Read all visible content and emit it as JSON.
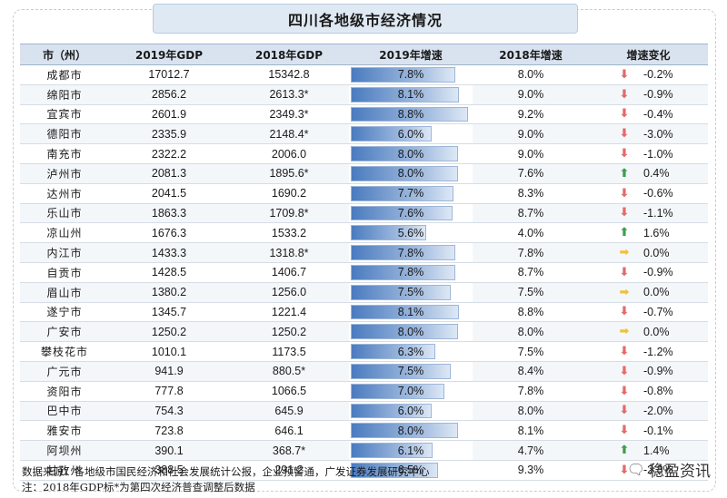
{
  "title": "四川各地级市经济情况",
  "headers": {
    "city": "市（州）",
    "gdp2019": "2019年GDP",
    "gdp2018": "2018年GDP",
    "growth2019": "2019年增速",
    "growth2018": "2018年增速",
    "change": "增速变化"
  },
  "arrow_colors": {
    "down": "#e36a6a",
    "up": "#3e9d4e",
    "flat": "#f0c23a"
  },
  "chart_data": {
    "type": "table",
    "title": "四川各地级市经济情况",
    "columns": [
      "市（州）",
      "2019年GDP",
      "2018年GDP",
      "2019年增速",
      "2018年增速",
      "增速变化"
    ],
    "growth2019_bar_max": 9.0,
    "rows": [
      {
        "city": "成都市",
        "gdp2019": "17012.7",
        "gdp2018": "15342.8",
        "growth2019": "7.8%",
        "g2019": 7.8,
        "growth2018": "8.0%",
        "change": "-0.2%",
        "dir": "down"
      },
      {
        "city": "绵阳市",
        "gdp2019": "2856.2",
        "gdp2018": "2613.3*",
        "growth2019": "8.1%",
        "g2019": 8.1,
        "growth2018": "9.0%",
        "change": "-0.9%",
        "dir": "down"
      },
      {
        "city": "宜宾市",
        "gdp2019": "2601.9",
        "gdp2018": "2349.3*",
        "growth2019": "8.8%",
        "g2019": 8.8,
        "growth2018": "9.2%",
        "change": "-0.4%",
        "dir": "down"
      },
      {
        "city": "德阳市",
        "gdp2019": "2335.9",
        "gdp2018": "2148.4*",
        "growth2019": "6.0%",
        "g2019": 6.0,
        "growth2018": "9.0%",
        "change": "-3.0%",
        "dir": "down"
      },
      {
        "city": "南充市",
        "gdp2019": "2322.2",
        "gdp2018": "2006.0",
        "growth2019": "8.0%",
        "g2019": 8.0,
        "growth2018": "9.0%",
        "change": "-1.0%",
        "dir": "down"
      },
      {
        "city": "泸州市",
        "gdp2019": "2081.3",
        "gdp2018": "1895.6*",
        "growth2019": "8.0%",
        "g2019": 8.0,
        "growth2018": "7.6%",
        "change": "0.4%",
        "dir": "up"
      },
      {
        "city": "达州市",
        "gdp2019": "2041.5",
        "gdp2018": "1690.2",
        "growth2019": "7.7%",
        "g2019": 7.7,
        "growth2018": "8.3%",
        "change": "-0.6%",
        "dir": "down"
      },
      {
        "city": "乐山市",
        "gdp2019": "1863.3",
        "gdp2018": "1709.8*",
        "growth2019": "7.6%",
        "g2019": 7.6,
        "growth2018": "8.7%",
        "change": "-1.1%",
        "dir": "down"
      },
      {
        "city": "凉山州",
        "gdp2019": "1676.3",
        "gdp2018": "1533.2",
        "growth2019": "5.6%",
        "g2019": 5.6,
        "growth2018": "4.0%",
        "change": "1.6%",
        "dir": "up"
      },
      {
        "city": "内江市",
        "gdp2019": "1433.3",
        "gdp2018": "1318.8*",
        "growth2019": "7.8%",
        "g2019": 7.8,
        "growth2018": "7.8%",
        "change": "0.0%",
        "dir": "flat"
      },
      {
        "city": "自贡市",
        "gdp2019": "1428.5",
        "gdp2018": "1406.7",
        "growth2019": "7.8%",
        "g2019": 7.8,
        "growth2018": "8.7%",
        "change": "-0.9%",
        "dir": "down"
      },
      {
        "city": "眉山市",
        "gdp2019": "1380.2",
        "gdp2018": "1256.0",
        "growth2019": "7.5%",
        "g2019": 7.5,
        "growth2018": "7.5%",
        "change": "0.0%",
        "dir": "flat"
      },
      {
        "city": "遂宁市",
        "gdp2019": "1345.7",
        "gdp2018": "1221.4",
        "growth2019": "8.1%",
        "g2019": 8.1,
        "growth2018": "8.8%",
        "change": "-0.7%",
        "dir": "down"
      },
      {
        "city": "广安市",
        "gdp2019": "1250.2",
        "gdp2018": "1250.2",
        "growth2019": "8.0%",
        "g2019": 8.0,
        "growth2018": "8.0%",
        "change": "0.0%",
        "dir": "flat"
      },
      {
        "city": "攀枝花市",
        "gdp2019": "1010.1",
        "gdp2018": "1173.5",
        "growth2019": "6.3%",
        "g2019": 6.3,
        "growth2018": "7.5%",
        "change": "-1.2%",
        "dir": "down"
      },
      {
        "city": "广元市",
        "gdp2019": "941.9",
        "gdp2018": "880.5*",
        "growth2019": "7.5%",
        "g2019": 7.5,
        "growth2018": "8.4%",
        "change": "-0.9%",
        "dir": "down"
      },
      {
        "city": "资阳市",
        "gdp2019": "777.8",
        "gdp2018": "1066.5",
        "growth2019": "7.0%",
        "g2019": 7.0,
        "growth2018": "7.8%",
        "change": "-0.8%",
        "dir": "down"
      },
      {
        "city": "巴中市",
        "gdp2019": "754.3",
        "gdp2018": "645.9",
        "growth2019": "6.0%",
        "g2019": 6.0,
        "growth2018": "8.0%",
        "change": "-2.0%",
        "dir": "down"
      },
      {
        "city": "雅安市",
        "gdp2019": "723.8",
        "gdp2018": "646.1",
        "growth2019": "8.0%",
        "g2019": 8.0,
        "growth2018": "8.1%",
        "change": "-0.1%",
        "dir": "down"
      },
      {
        "city": "阿坝州",
        "gdp2019": "390.1",
        "gdp2018": "368.7*",
        "growth2019": "6.1%",
        "g2019": 6.1,
        "growth2018": "4.7%",
        "change": "1.4%",
        "dir": "up"
      },
      {
        "city": "甘孜州",
        "gdp2019": "388.5",
        "gdp2018": "291.2",
        "growth2019": "6.5%",
        "g2019": 6.5,
        "growth2018": "9.3%",
        "change": "-2.8%",
        "dir": "down"
      }
    ]
  },
  "footnotes": {
    "source": "数据来源：各地级市国民经济和社会发展统计公报，企业预警通，广发证券发展研究中心",
    "note": "注：2018年GDP标*为第四次经济普查调整后数据"
  },
  "logo": {
    "icon": "wechat-icon",
    "text": "稳盈资讯"
  }
}
